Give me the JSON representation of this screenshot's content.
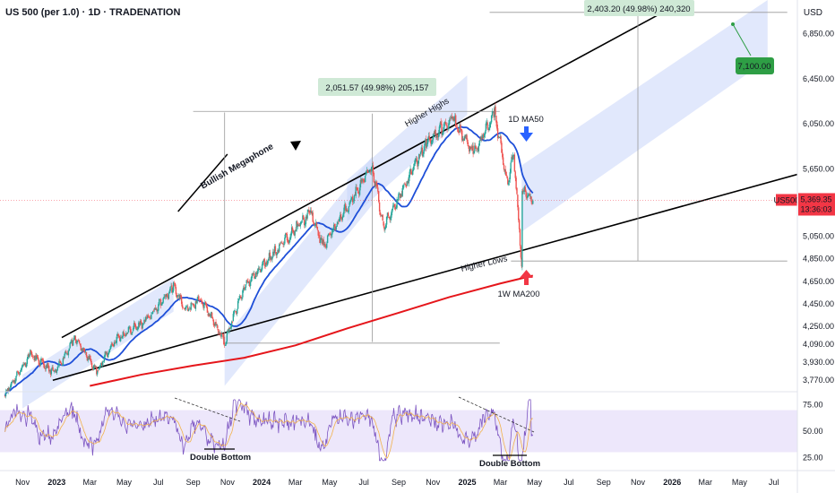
{
  "header": {
    "symbol_line": "US 500 (per 1.0) · 1D · TRADENATION",
    "currency": "USD"
  },
  "colors": {
    "price_up": "#26a69a",
    "price_down": "#ef5350",
    "ma50": "#1e4fd8",
    "ma200": "#e5161b",
    "channel_fill": "#c9d6fa",
    "rsi_band": "#ede7fb",
    "rsi_line": "#7e57c2",
    "rsi_ma": "#f2b24b",
    "target_label": "#2e9e45",
    "price_tag": "#f23645"
  },
  "chart_data": {
    "type": "candlestick",
    "price_axis": {
      "ticks": [
        "6,850.00",
        "6,450.00",
        "6,050.00",
        "5,650.00",
        "5,050.00",
        "4,850.00",
        "4,650.00",
        "4,450.00",
        "4,250.00",
        "4,090.00",
        "3,930.00",
        "3,770.00"
      ],
      "range": [
        3700,
        7150
      ]
    },
    "rsi_axis": {
      "ticks": [
        "75.00",
        "50.00",
        "25.00"
      ],
      "range": [
        15,
        85
      ],
      "band": [
        30,
        70
      ]
    },
    "time_axis": [
      "Nov",
      "2023",
      "Mar",
      "May",
      "Jul",
      "Sep",
      "Nov",
      "2024",
      "Mar",
      "May",
      "Jul",
      "Sep",
      "Nov",
      "2025",
      "Mar",
      "May",
      "Jul",
      "Sep",
      "Nov",
      "2026",
      "Mar",
      "May",
      "Jul"
    ],
    "current_price": {
      "symbol": "US500",
      "value": "5,369.35",
      "countdown": "13:36:03"
    },
    "series": [
      {
        "name": "Price",
        "anchors": [
          [
            "2022-10-01",
            3650
          ],
          [
            "2022-11-15",
            4000
          ],
          [
            "2022-12-28",
            3830
          ],
          [
            "2023-02-02",
            4150
          ],
          [
            "2023-03-13",
            3850
          ],
          [
            "2023-04-15",
            4130
          ],
          [
            "2023-06-10",
            4300
          ],
          [
            "2023-07-28",
            4600
          ],
          [
            "2023-08-20",
            4380
          ],
          [
            "2023-09-15",
            4500
          ],
          [
            "2023-10-27",
            4110
          ],
          [
            "2023-12-01",
            4600
          ],
          [
            "2024-01-31",
            4950
          ],
          [
            "2024-03-28",
            5260
          ],
          [
            "2024-04-19",
            4960
          ],
          [
            "2024-07-16",
            5670
          ],
          [
            "2024-08-05",
            5130
          ],
          [
            "2024-10-20",
            5880
          ],
          [
            "2024-12-06",
            6090
          ],
          [
            "2025-01-13",
            5780
          ],
          [
            "2025-02-19",
            6150
          ],
          [
            "2025-03-13",
            5510
          ],
          [
            "2025-03-25",
            5780
          ],
          [
            "2025-04-08",
            4810
          ],
          [
            "2025-04-09",
            5470
          ],
          [
            "2025-04-28",
            5369
          ]
        ]
      },
      {
        "name": "1D MA50"
      },
      {
        "name": "1W MA200"
      },
      {
        "name": "RSI"
      }
    ],
    "annotations": {
      "bullish_megaphone": "Bullish Megaphone",
      "higher_highs": "Higher Highs",
      "higher_lows": "Higher Lows",
      "ma50_label": "1D MA50",
      "ma200_label": "1W MA200",
      "double_bottom_1": "Double Bottom",
      "double_bottom_2": "Double Bottom",
      "measure_1": "2,051.57 (49.98%) 205,157",
      "measure_2": "2,403.20 (49.98%) 240,320",
      "target": "7,100.00"
    }
  }
}
